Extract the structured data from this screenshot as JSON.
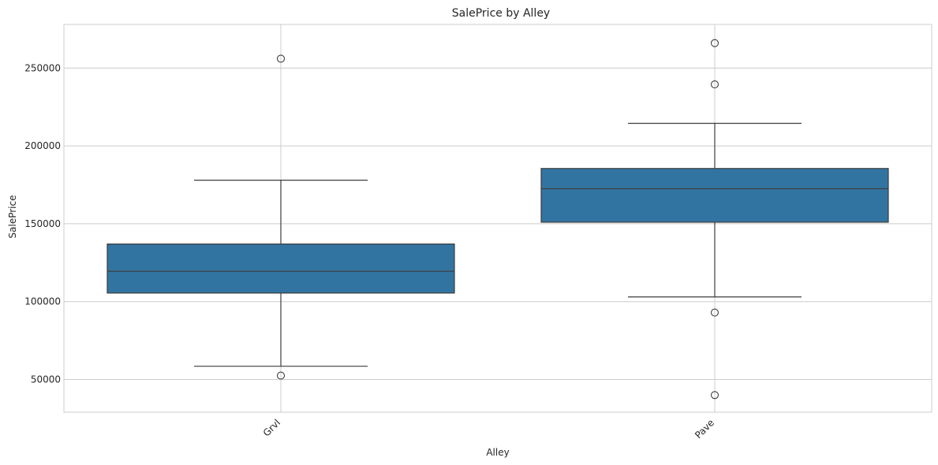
{
  "chart_data": {
    "type": "box",
    "title": "SalePrice by Alley",
    "xlabel": "Alley",
    "ylabel": "SalePrice",
    "ylim": [
      29000,
      278000
    ],
    "yticks": [
      50000,
      100000,
      150000,
      200000,
      250000
    ],
    "grid": true,
    "box_color": "#3274a1",
    "line_color": "#3d3d3d",
    "categories": [
      "Grvl",
      "Pave"
    ],
    "boxes": [
      {
        "category": "Grvl",
        "whisker_low": 58500,
        "q1": 105500,
        "median": 119500,
        "q3": 137000,
        "whisker_high": 178000,
        "outliers": [
          256000,
          52500
        ]
      },
      {
        "category": "Pave",
        "whisker_low": 103000,
        "q1": 151000,
        "median": 172500,
        "q3": 185500,
        "whisker_high": 214500,
        "outliers": [
          266000,
          239500,
          93000,
          40000
        ]
      }
    ]
  }
}
